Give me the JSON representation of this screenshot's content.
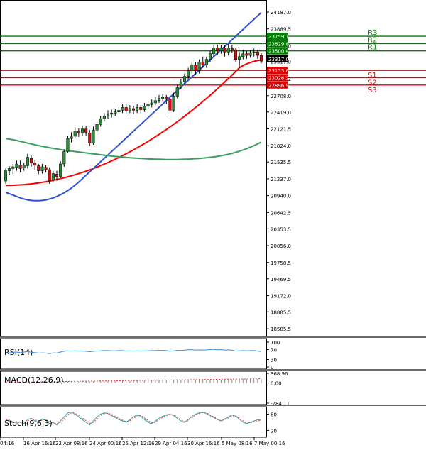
{
  "chart_data": [
    {
      "type": "candlestick",
      "title": "",
      "ylim": [
        18500,
        24300
      ],
      "y_ticks": [
        "24187.0",
        "23889.5",
        "23592.0",
        "23317.0",
        "23008.2",
        "22708.0",
        "22419.0",
        "22121.5",
        "21824.0",
        "21535.5",
        "21237.0",
        "20940.0",
        "20642.5",
        "20353.5",
        "20056.0",
        "19758.5",
        "19469.5",
        "19172.0",
        "18885.5",
        "18585.5"
      ],
      "x_ticks": [
        "04:16",
        "16 Apr 16:16",
        "22 Apr 08:16",
        "24 Apr 00:16",
        "25 Apr 12:16",
        "29 Apr 04:16",
        "30 Apr 16:16",
        "5 May 08:16",
        "7 May 00:16"
      ],
      "last_price": "23317.0",
      "levels": [
        {
          "name": "R3",
          "value": 23759.1,
          "label": "23759.1",
          "color": "#008000"
        },
        {
          "name": "R2",
          "value": 23629.8,
          "label": "23629.8",
          "color": "#008000"
        },
        {
          "name": "R1",
          "value": 23500.4,
          "label": "23500.4",
          "color": "#008000"
        },
        {
          "name": "S1",
          "value": 23155.6,
          "label": "23155.6",
          "color": "#e00000"
        },
        {
          "name": "S2",
          "value": 23026.2,
          "label": "23026.2",
          "color": "#e00000"
        },
        {
          "name": "S3",
          "value": 22896.9,
          "label": "22896.9",
          "color": "#e00000"
        }
      ],
      "candles": [
        [
          21200,
          21380,
          21150,
          21420
        ],
        [
          21380,
          21420,
          21300,
          21460
        ],
        [
          21420,
          21450,
          21320,
          21500
        ],
        [
          21440,
          21500,
          21380,
          21560
        ],
        [
          21480,
          21420,
          21350,
          21560
        ],
        [
          21430,
          21480,
          21380,
          21520
        ],
        [
          21470,
          21620,
          21420,
          21680
        ],
        [
          21600,
          21520,
          21450,
          21650
        ],
        [
          21520,
          21480,
          21400,
          21560
        ],
        [
          21470,
          21380,
          21320,
          21500
        ],
        [
          21380,
          21450,
          21330,
          21500
        ],
        [
          21440,
          21400,
          21350,
          21480
        ],
        [
          21400,
          21200,
          21150,
          21440
        ],
        [
          21220,
          21330,
          21180,
          21380
        ],
        [
          21320,
          21280,
          21200,
          21380
        ],
        [
          21280,
          21500,
          21250,
          21550
        ],
        [
          21500,
          21720,
          21450,
          21760
        ],
        [
          21720,
          21950,
          21700,
          21990
        ],
        [
          21950,
          21980,
          21880,
          22060
        ],
        [
          21990,
          22080,
          21950,
          22150
        ],
        [
          22080,
          22050,
          21980,
          22130
        ],
        [
          22050,
          22120,
          22000,
          22180
        ],
        [
          22120,
          22060,
          21990,
          22170
        ],
        [
          22050,
          21870,
          21820,
          22100
        ],
        [
          21870,
          22100,
          21840,
          22160
        ],
        [
          22100,
          22200,
          22060,
          22260
        ],
        [
          22200,
          22300,
          22160,
          22350
        ],
        [
          22300,
          22350,
          22250,
          22400
        ],
        [
          22350,
          22380,
          22300,
          22450
        ],
        [
          22380,
          22400,
          22320,
          22460
        ],
        [
          22400,
          22420,
          22350,
          22470
        ],
        [
          22420,
          22450,
          22380,
          22510
        ],
        [
          22450,
          22500,
          22400,
          22560
        ],
        [
          22500,
          22440,
          22380,
          22560
        ],
        [
          22440,
          22480,
          22400,
          22540
        ],
        [
          22480,
          22450,
          22380,
          22530
        ],
        [
          22450,
          22500,
          22400,
          22560
        ],
        [
          22500,
          22460,
          22400,
          22540
        ],
        [
          22460,
          22520,
          22420,
          22580
        ],
        [
          22520,
          22550,
          22480,
          22600
        ],
        [
          22550,
          22580,
          22500,
          22640
        ],
        [
          22580,
          22620,
          22540,
          22680
        ],
        [
          22620,
          22660,
          22580,
          22720
        ],
        [
          22660,
          22680,
          22600,
          22740
        ],
        [
          22680,
          22650,
          22560,
          22720
        ],
        [
          22650,
          22450,
          22380,
          22700
        ],
        [
          22450,
          22700,
          22420,
          22760
        ],
        [
          22700,
          22850,
          22660,
          22900
        ],
        [
          22850,
          22950,
          22820,
          23000
        ],
        [
          22950,
          23050,
          22900,
          23100
        ],
        [
          23050,
          23150,
          23000,
          23200
        ],
        [
          23150,
          23250,
          23100,
          23300
        ],
        [
          23250,
          23150,
          23080,
          23300
        ],
        [
          23150,
          23300,
          23100,
          23350
        ],
        [
          23300,
          23250,
          23200,
          23400
        ],
        [
          23250,
          23350,
          23200,
          23400
        ],
        [
          23350,
          23450,
          23300,
          23500
        ],
        [
          23450,
          23550,
          23400,
          23600
        ],
        [
          23550,
          23500,
          23430,
          23610
        ],
        [
          23500,
          23550,
          23450,
          23600
        ],
        [
          23550,
          23480,
          23400,
          23600
        ],
        [
          23480,
          23550,
          23420,
          23620
        ],
        [
          23540,
          23520,
          23460,
          23600
        ],
        [
          23520,
          23350,
          23300,
          23560
        ],
        [
          23350,
          23400,
          23200,
          23480
        ],
        [
          23400,
          23450,
          23350,
          23520
        ],
        [
          23450,
          23420,
          23360,
          23500
        ],
        [
          23420,
          23470,
          23380,
          23520
        ],
        [
          23470,
          23480,
          23400,
          23540
        ],
        [
          23480,
          23420,
          23360,
          23520
        ],
        [
          23420,
          23317,
          23280,
          23460
        ]
      ],
      "moving_averages": [
        {
          "color": "#ff0000",
          "values": [
            21120,
            21121,
            21123,
            21126,
            21130,
            21135,
            21141,
            21148,
            21156,
            21165,
            21175,
            21186,
            21198,
            21211,
            21225,
            21240,
            21256,
            21273,
            21291,
            21310,
            21330,
            21351,
            21373,
            21396,
            21420,
            21445,
            21471,
            21498,
            21526,
            21555,
            21585,
            21616,
            21648,
            21681,
            21715,
            21750,
            21786,
            21823,
            21861,
            21900,
            21940,
            21981,
            22023,
            22066,
            22110,
            22155,
            22201,
            22248,
            22296,
            22345,
            22395,
            22446,
            22498,
            22551,
            22605,
            22660,
            22716,
            22773,
            22831,
            22890,
            22950,
            23011,
            23073,
            23136,
            23200,
            23240,
            23270,
            23295,
            23315,
            23330,
            23340
          ]
        },
        {
          "color": "#3050d0",
          "values": [
            21000,
            20975,
            20950,
            20925,
            20900,
            20880,
            20865,
            20855,
            20850,
            20850,
            20855,
            20865,
            20880,
            20900,
            20925,
            20955,
            20990,
            21030,
            21075,
            21125,
            21180,
            21240,
            21300,
            21360,
            21420,
            21480,
            21540,
            21600,
            21660,
            21720,
            21780,
            21840,
            21900,
            21960,
            22020,
            22080,
            22140,
            22200,
            22260,
            22320,
            22380,
            22440,
            22500,
            22560,
            22620,
            22680,
            22740,
            22800,
            22860,
            22920,
            22980,
            23040,
            23100,
            23160,
            23220,
            23280,
            23340,
            23400,
            23460,
            23520,
            23580,
            23640,
            23700,
            23760,
            23820,
            23880,
            23940,
            24000,
            24060,
            24120,
            24180
          ]
        },
        {
          "color": "#3aa060",
          "values": [
            21950,
            21940,
            21928,
            21915,
            21900,
            21885,
            21870,
            21855,
            21840,
            21825,
            21812,
            21800,
            21788,
            21776,
            21765,
            21755,
            21745,
            21736,
            21728,
            21720,
            21712,
            21704,
            21696,
            21688,
            21680,
            21672,
            21664,
            21656,
            21648,
            21640,
            21634,
            21628,
            21622,
            21616,
            21610,
            21606,
            21602,
            21598,
            21594,
            21590,
            21588,
            21586,
            21584,
            21582,
            21580,
            21580,
            21580,
            21580,
            21582,
            21584,
            21586,
            21590,
            21594,
            21598,
            21604,
            21610,
            21618,
            21626,
            21636,
            21646,
            21658,
            21672,
            21688,
            21706,
            21726,
            21748,
            21772,
            21798,
            21826,
            21856,
            21888
          ]
        }
      ]
    },
    {
      "type": "line",
      "name": "RSI(14)",
      "y_ticks": [
        "100",
        "70",
        "30",
        "0"
      ],
      "values": [
        58,
        57,
        59,
        60,
        58,
        60,
        62,
        59,
        58,
        56,
        57,
        56,
        53,
        57,
        56,
        60,
        63,
        65,
        64,
        65,
        64,
        64,
        63,
        61,
        63,
        64,
        65,
        66,
        66,
        65,
        65,
        66,
        66,
        64,
        65,
        64,
        65,
        64,
        65,
        65,
        66,
        66,
        67,
        67,
        66,
        63,
        65,
        67,
        67,
        68,
        69,
        70,
        68,
        69,
        68,
        69,
        70,
        71,
        69,
        70,
        68,
        69,
        68,
        64,
        65,
        66,
        65,
        66,
        66,
        64,
        62
      ]
    },
    {
      "type": "bar",
      "name": "MACD(12,26,9)",
      "y_ticks": [
        "368.96",
        "0.00",
        "-784.11"
      ],
      "values": [
        10,
        12,
        14,
        16,
        18,
        20,
        22,
        24,
        26,
        28,
        30,
        32,
        34,
        36,
        38,
        40,
        42,
        44,
        46,
        48,
        50,
        52,
        54,
        56,
        58,
        60,
        62,
        64,
        66,
        68,
        70,
        72,
        74,
        76,
        78,
        80,
        82,
        84,
        86,
        88,
        90,
        92,
        94,
        96,
        98,
        100,
        102,
        104,
        106,
        108,
        110,
        112,
        114,
        116,
        118,
        120,
        122,
        124,
        126,
        128,
        130,
        132,
        134,
        136,
        138,
        140,
        142,
        144,
        146,
        148,
        150
      ],
      "signal": [
        20,
        22,
        24,
        26,
        28,
        30,
        32,
        34,
        36,
        38,
        40,
        42,
        44,
        46,
        48,
        50,
        52,
        54,
        56,
        58,
        60,
        62,
        64,
        66,
        68,
        70,
        72,
        74,
        76,
        78,
        80,
        82,
        84,
        86,
        88,
        90,
        92,
        94,
        96,
        98,
        100,
        102,
        104,
        106,
        108,
        110,
        112,
        114,
        116,
        118,
        120,
        122,
        124,
        126,
        128,
        130,
        132,
        134,
        136,
        138,
        140,
        142,
        144,
        146,
        148,
        150,
        152,
        154,
        156,
        158,
        160
      ]
    },
    {
      "type": "line",
      "name": "Stoch(9,6,3)",
      "y_ticks": [
        "80",
        "20"
      ],
      "k": [
        60,
        55,
        48,
        52,
        50,
        45,
        60,
        65,
        55,
        50,
        62,
        58,
        45,
        50,
        40,
        55,
        70,
        85,
        88,
        80,
        70,
        60,
        50,
        40,
        55,
        70,
        80,
        85,
        82,
        75,
        68,
        60,
        55,
        50,
        60,
        70,
        78,
        72,
        60,
        50,
        45,
        55,
        65,
        72,
        78,
        80,
        75,
        65,
        55,
        50,
        60,
        72,
        80,
        85,
        88,
        82,
        75,
        68,
        60,
        55,
        62,
        70,
        78,
        72,
        62,
        50,
        45,
        50,
        55,
        60,
        58
      ],
      "d": [
        62,
        58,
        52,
        50,
        51,
        50,
        55,
        62,
        60,
        54,
        58,
        60,
        52,
        48,
        45,
        50,
        62,
        78,
        85,
        84,
        76,
        66,
        56,
        46,
        50,
        62,
        74,
        82,
        84,
        80,
        72,
        64,
        58,
        52,
        56,
        64,
        74,
        76,
        66,
        56,
        48,
        50,
        60,
        68,
        75,
        78,
        78,
        70,
        60,
        52,
        56,
        66,
        76,
        82,
        86,
        84,
        78,
        70,
        62,
        56,
        60,
        66,
        74,
        74,
        66,
        56,
        48,
        48,
        52,
        56,
        58
      ]
    }
  ]
}
